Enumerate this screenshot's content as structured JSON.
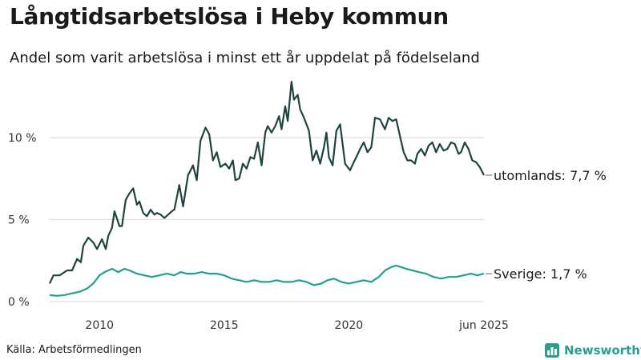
{
  "header": {
    "title": "Långtidsarbetslösa i Heby kommun",
    "subtitle": "Andel som varit arbetslösa i minst ett år uppdelat på födelseland"
  },
  "footer": {
    "source": "Källa: Arbetsförmedlingen",
    "brand": "Newsworthy",
    "brand_icon": "bar-chart-logo-icon"
  },
  "colors": {
    "series_utomlands": "#1e4440",
    "series_sverige": "#22a08e",
    "grid": "#d9d9d9",
    "brand": "#27a08f"
  },
  "chart_data": {
    "type": "line",
    "title": "Långtidsarbetslösa i Heby kommun",
    "subtitle": "Andel som varit arbetslösa i minst ett år uppdelat på födelseland",
    "xlabel": "",
    "ylabel": "",
    "x_ticks": [
      2010,
      2015,
      2020,
      "jun 2025"
    ],
    "xlim": [
      2008.0,
      2025.42
    ],
    "y_ticks": [
      0,
      5,
      10
    ],
    "y_tick_labels": [
      "0 %",
      "5 %",
      "10 %"
    ],
    "ylim": [
      0,
      13.5
    ],
    "grid": "horizontal",
    "legend": "direct-labels-right",
    "series": [
      {
        "name": "utomlands",
        "end_label": "utomlands: 7,7 %",
        "color": "#1e4440",
        "x": [
          2008.0,
          2008.15,
          2008.4,
          2008.7,
          2008.9,
          2009.1,
          2009.25,
          2009.35,
          2009.55,
          2009.75,
          2009.9,
          2010.1,
          2010.25,
          2010.35,
          2010.5,
          2010.6,
          2010.8,
          2010.9,
          2011.05,
          2011.2,
          2011.35,
          2011.5,
          2011.6,
          2011.75,
          2011.9,
          2012.05,
          2012.2,
          2012.3,
          2012.45,
          2012.6,
          2012.75,
          2012.9,
          2013.0,
          2013.2,
          2013.35,
          2013.55,
          2013.75,
          2013.9,
          2014.05,
          2014.25,
          2014.4,
          2014.55,
          2014.7,
          2014.85,
          2015.05,
          2015.2,
          2015.35,
          2015.45,
          2015.6,
          2015.75,
          2015.9,
          2016.05,
          2016.2,
          2016.35,
          2016.5,
          2016.65,
          2016.75,
          2016.9,
          2017.05,
          2017.2,
          2017.3,
          2017.45,
          2017.55,
          2017.7,
          2017.8,
          2017.95,
          2018.05,
          2018.2,
          2018.4,
          2018.55,
          2018.7,
          2018.85,
          2019.0,
          2019.1,
          2019.2,
          2019.35,
          2019.5,
          2019.65,
          2019.85,
          2020.05,
          2020.2,
          2020.3,
          2020.45,
          2020.6,
          2020.75,
          2020.9,
          2021.05,
          2021.25,
          2021.45,
          2021.6,
          2021.75,
          2021.9,
          2022.05,
          2022.2,
          2022.35,
          2022.5,
          2022.65,
          2022.75,
          2022.9,
          2023.05,
          2023.2,
          2023.35,
          2023.5,
          2023.65,
          2023.8,
          2023.95,
          2024.1,
          2024.25,
          2024.4,
          2024.5,
          2024.65,
          2024.8,
          2024.95,
          2025.1,
          2025.25,
          2025.42
        ],
        "y": [
          1.1,
          1.6,
          1.6,
          1.9,
          1.9,
          2.6,
          2.4,
          3.4,
          3.9,
          3.6,
          3.2,
          3.8,
          3.2,
          4.0,
          4.5,
          5.5,
          4.6,
          4.6,
          6.2,
          6.6,
          6.9,
          5.9,
          6.1,
          5.4,
          5.2,
          5.6,
          5.3,
          5.4,
          5.3,
          5.1,
          5.3,
          5.5,
          5.6,
          7.1,
          5.8,
          7.7,
          8.3,
          7.4,
          9.8,
          10.6,
          10.2,
          8.6,
          9.1,
          8.2,
          8.4,
          8.1,
          8.6,
          7.4,
          7.5,
          8.4,
          8.1,
          8.8,
          8.7,
          9.7,
          8.3,
          10.3,
          10.7,
          10.3,
          10.7,
          11.3,
          10.5,
          11.9,
          11.0,
          13.4,
          12.3,
          12.6,
          11.7,
          11.2,
          10.4,
          8.6,
          9.2,
          8.4,
          9.4,
          10.3,
          8.8,
          8.3,
          10.4,
          10.8,
          8.4,
          8.0,
          8.5,
          8.8,
          9.3,
          9.7,
          9.1,
          9.4,
          11.2,
          11.1,
          10.5,
          11.2,
          11.0,
          11.1,
          10.1,
          9.1,
          8.6,
          8.6,
          8.4,
          9.0,
          9.3,
          8.9,
          9.5,
          9.7,
          9.1,
          9.6,
          9.2,
          9.3,
          9.7,
          9.6,
          9.0,
          9.1,
          9.7,
          9.3,
          8.6,
          8.5,
          8.2,
          7.7
        ]
      },
      {
        "name": "Sverige",
        "end_label": "Sverige: 1,7 %",
        "color": "#22a08e",
        "x": [
          2008.0,
          2008.3,
          2008.6,
          2008.9,
          2009.2,
          2009.5,
          2009.75,
          2010.0,
          2010.2,
          2010.5,
          2010.75,
          2011.0,
          2011.2,
          2011.5,
          2011.8,
          2012.1,
          2012.4,
          2012.7,
          2013.0,
          2013.25,
          2013.5,
          2013.8,
          2014.1,
          2014.4,
          2014.7,
          2015.0,
          2015.3,
          2015.6,
          2015.9,
          2016.2,
          2016.5,
          2016.8,
          2017.1,
          2017.4,
          2017.7,
          2018.0,
          2018.3,
          2018.6,
          2018.9,
          2019.15,
          2019.4,
          2019.7,
          2020.0,
          2020.3,
          2020.6,
          2020.9,
          2021.2,
          2021.45,
          2021.7,
          2021.9,
          2022.1,
          2022.3,
          2022.55,
          2022.8,
          2023.1,
          2023.4,
          2023.7,
          2024.0,
          2024.3,
          2024.6,
          2024.9,
          2025.15,
          2025.42
        ],
        "y": [
          0.4,
          0.35,
          0.4,
          0.5,
          0.6,
          0.8,
          1.1,
          1.6,
          1.8,
          2.0,
          1.8,
          2.0,
          1.9,
          1.7,
          1.6,
          1.5,
          1.6,
          1.7,
          1.6,
          1.8,
          1.7,
          1.7,
          1.8,
          1.7,
          1.7,
          1.6,
          1.4,
          1.3,
          1.2,
          1.3,
          1.2,
          1.2,
          1.3,
          1.2,
          1.2,
          1.3,
          1.2,
          1.0,
          1.1,
          1.3,
          1.4,
          1.2,
          1.1,
          1.2,
          1.3,
          1.2,
          1.5,
          1.9,
          2.1,
          2.2,
          2.1,
          2.0,
          1.9,
          1.8,
          1.7,
          1.5,
          1.4,
          1.5,
          1.5,
          1.6,
          1.7,
          1.6,
          1.7
        ]
      }
    ]
  }
}
